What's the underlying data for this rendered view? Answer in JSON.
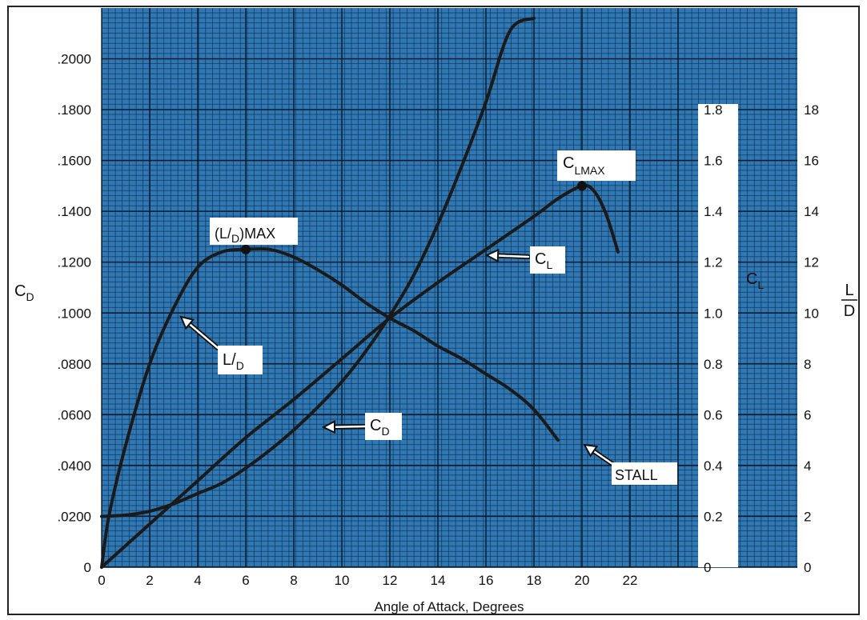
{
  "chart_data": {
    "type": "line",
    "title": "",
    "xlabel": "Angle of Attack, Degrees",
    "x_ticks": [
      "0",
      "2",
      "4",
      "6",
      "8",
      "10",
      "12",
      "14",
      "16",
      "18",
      "20",
      "22"
    ],
    "xlim": [
      0,
      24
    ],
    "axes": {
      "cd": {
        "label": "C",
        "sub": "D",
        "ylim": [
          0,
          0.22
        ],
        "ticks": [
          0,
          0.02,
          0.04,
          0.06,
          0.08,
          0.1,
          0.12,
          0.14,
          0.16,
          0.18,
          0.2
        ],
        "tick_labels": [
          "0",
          ".0200",
          ".0400",
          ".0600",
          ".0800",
          ".1000",
          ".1200",
          ".1400",
          ".1600",
          ".1800",
          ".2000"
        ]
      },
      "cl": {
        "label": "C",
        "sub": "L",
        "ylim": [
          0,
          2.2
        ],
        "ticks": [
          0,
          0.2,
          0.4,
          0.6,
          0.8,
          1.0,
          1.2,
          1.4,
          1.6,
          1.8
        ],
        "tick_labels": [
          "0",
          "0.2",
          "0.4",
          "0.6",
          "0.8",
          "1.0",
          "1.2",
          "1.4",
          "1.6",
          "1.8"
        ]
      },
      "ld": {
        "label_num": "L",
        "label_den": "D",
        "ylim": [
          0,
          22
        ],
        "ticks": [
          0,
          2,
          4,
          6,
          8,
          10,
          12,
          14,
          16,
          18
        ],
        "tick_labels": [
          "0",
          "2",
          "4",
          "6",
          "8",
          "10",
          "12",
          "14",
          "16",
          "18"
        ]
      }
    },
    "series": [
      {
        "key": "cd",
        "axis": "cd",
        "x": [
          0,
          1,
          2,
          3,
          4,
          5,
          6,
          7,
          8,
          9,
          10,
          11,
          12,
          13,
          14,
          15,
          16,
          17,
          18
        ],
        "y": [
          0.02,
          0.0205,
          0.022,
          0.025,
          0.029,
          0.033,
          0.039,
          0.046,
          0.054,
          0.063,
          0.073,
          0.085,
          0.099,
          0.115,
          0.135,
          0.158,
          0.183,
          0.211,
          0.216
        ]
      },
      {
        "key": "cl",
        "axis": "cl",
        "x": [
          0,
          2,
          4,
          6,
          8,
          10,
          12,
          14,
          16,
          18,
          19,
          20,
          20.5,
          21,
          21.5
        ],
        "y": [
          0,
          0.17,
          0.34,
          0.51,
          0.66,
          0.82,
          0.98,
          1.12,
          1.25,
          1.38,
          1.45,
          1.5,
          1.48,
          1.39,
          1.24
        ]
      },
      {
        "key": "ld",
        "axis": "ld",
        "x": [
          0,
          0.3,
          1,
          2,
          3,
          4,
          5,
          6,
          7,
          8,
          9,
          10,
          11,
          12,
          13,
          14,
          15,
          16,
          17,
          18,
          19
        ],
        "y": [
          0,
          2,
          4.8,
          8,
          10.2,
          11.8,
          12.4,
          12.5,
          12.5,
          12.2,
          11.7,
          11.1,
          10.4,
          9.8,
          9.3,
          8.7,
          8.2,
          7.6,
          7.0,
          6.2,
          5.0
        ]
      }
    ],
    "markers": [
      {
        "name": "ld-max-point",
        "axis": "ld",
        "x": 6,
        "y": 12.5
      },
      {
        "name": "cl-max-point",
        "axis": "cl",
        "x": 20,
        "y": 1.5
      }
    ],
    "annotations": [
      {
        "name": "annotation-ld-max",
        "text": "(L/D)MAX",
        "parts": [
          "(L/",
          "D",
          ")MAX"
        ]
      },
      {
        "name": "annotation-cl-max",
        "text": "CLMAX",
        "parts": [
          "C",
          "LMAX"
        ]
      },
      {
        "name": "annotation-cl",
        "text": "CL",
        "parts": [
          "C",
          "L"
        ]
      },
      {
        "name": "annotation-ld",
        "text": "L/D",
        "parts": [
          "L/",
          "D"
        ]
      },
      {
        "name": "annotation-cd",
        "text": "CD",
        "parts": [
          "C",
          "D"
        ]
      },
      {
        "name": "annotation-stall",
        "text": "STALL",
        "parts": [
          "STALL"
        ]
      }
    ],
    "grid": true,
    "colors": {
      "plot_background": "#2f78b4",
      "grid_minor": "#0d2a45",
      "grid_major": "#07182a",
      "curves": "#1a1a1a"
    }
  }
}
